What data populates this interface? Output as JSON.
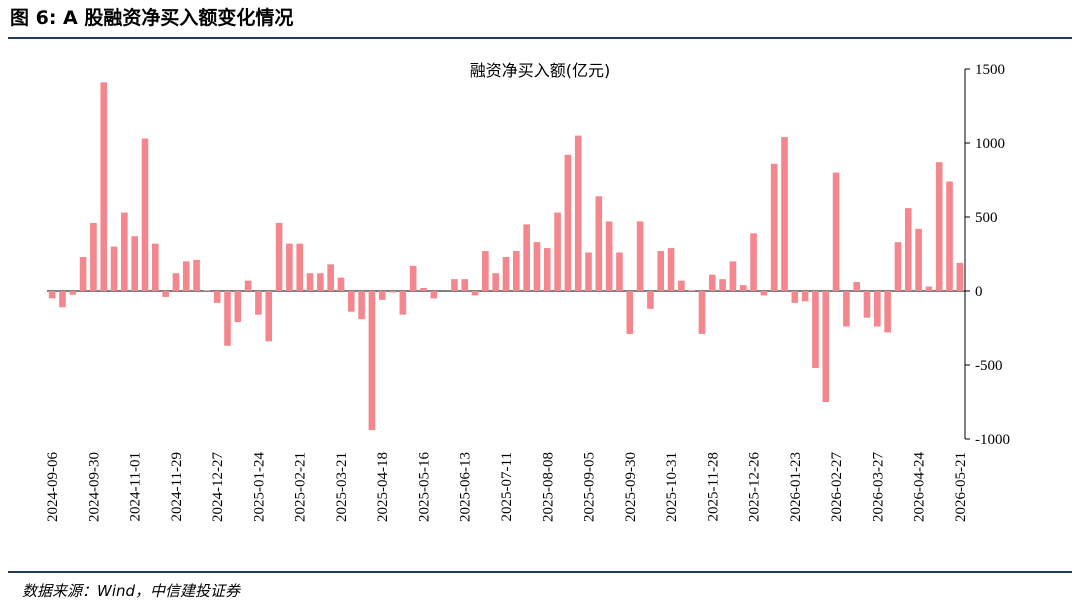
{
  "header": {
    "title": "图 6: A 股融资净买入额变化情况"
  },
  "chart_data": {
    "type": "bar",
    "title": "融资净买入额(亿元)",
    "categories": [
      "2024-09-06",
      null,
      null,
      null,
      "2024-09-30",
      null,
      null,
      null,
      "2024-11-01",
      null,
      null,
      null,
      "2024-11-29",
      null,
      null,
      null,
      "2024-12-27",
      null,
      null,
      null,
      "2025-01-24",
      null,
      null,
      null,
      "2025-02-21",
      null,
      null,
      null,
      "2025-03-21",
      null,
      null,
      null,
      "2025-04-18",
      null,
      null,
      null,
      "2025-05-16",
      null,
      null,
      null,
      "2025-06-13",
      null,
      null,
      null,
      "2025-07-11",
      null,
      null,
      null,
      "2025-08-08",
      null,
      null,
      null,
      "2025-09-05",
      null,
      null,
      null,
      "2025-09-30",
      null,
      null,
      null,
      "2025-10-31",
      null,
      null,
      null,
      "2025-11-28",
      null,
      null,
      null,
      "2025-12-26",
      null,
      null,
      null,
      "2026-01-23",
      null,
      null,
      null,
      "2026-02-27",
      null,
      null,
      null,
      "2026-03-27",
      null,
      null,
      null,
      "2026-04-24",
      null,
      null,
      null,
      "2026-05-21"
    ],
    "values": [
      -50,
      -110,
      -25,
      230,
      460,
      1410,
      300,
      530,
      370,
      1030,
      320,
      -40,
      120,
      200,
      210,
      5,
      -80,
      -370,
      -210,
      70,
      -160,
      -340,
      460,
      320,
      320,
      120,
      120,
      180,
      90,
      -140,
      -190,
      -940,
      -60,
      -10,
      -160,
      170,
      20,
      -50,
      0,
      80,
      80,
      -30,
      270,
      120,
      230,
      270,
      450,
      330,
      290,
      530,
      920,
      1050,
      260,
      640,
      470,
      260,
      -290,
      470,
      -120,
      270,
      290,
      70,
      5,
      -290,
      110,
      80,
      200,
      40,
      390,
      -30,
      860,
      1040,
      -80,
      -70,
      -520,
      -750,
      800,
      -240,
      60,
      -180,
      -240,
      -280,
      330,
      560,
      420,
      30,
      870,
      740,
      190
    ],
    "color": "#f4868d",
    "ylim": [
      -1000,
      1500
    ],
    "yticks": [
      -1000,
      -500,
      0,
      500,
      1000,
      1500
    ]
  },
  "footer": {
    "source": "数据来源：Wind，中信建投证券"
  }
}
